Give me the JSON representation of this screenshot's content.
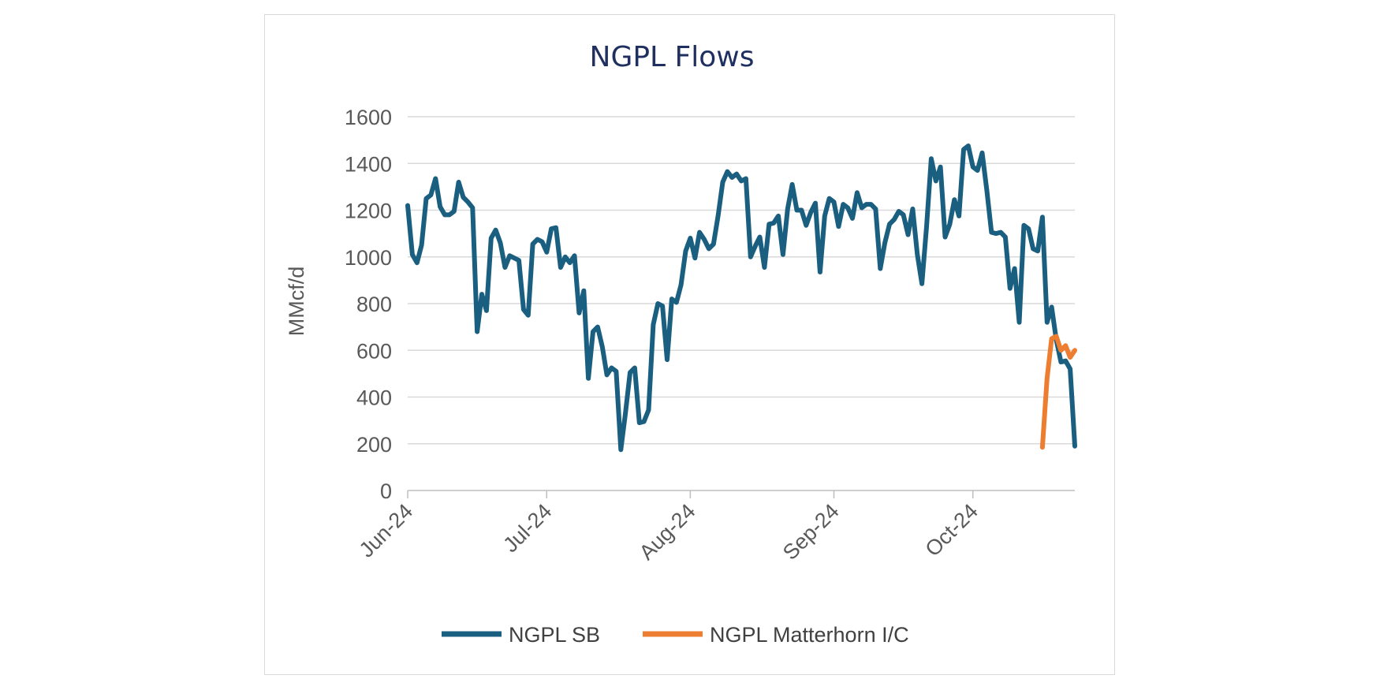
{
  "chart_data": {
    "type": "line",
    "title": "NGPL Flows",
    "ylabel": "MMcf/d",
    "xlabel": "",
    "ylim": [
      0,
      1600
    ],
    "yticks": [
      "0",
      "200",
      "400",
      "600",
      "800",
      "1000",
      "1200",
      "1400",
      "1600"
    ],
    "xlim": [
      "2024-06-01",
      "2024-10-23"
    ],
    "xticks": [
      {
        "label": "Jun-24",
        "date": "2024-06-01"
      },
      {
        "label": "Jul-24",
        "date": "2024-07-01"
      },
      {
        "label": "Aug-24",
        "date": "2024-08-01"
      },
      {
        "label": "Sep-24",
        "date": "2024-09-01"
      },
      {
        "label": "Oct-24",
        "date": "2024-10-01"
      }
    ],
    "grid": true,
    "legend_position": "bottom",
    "series": [
      {
        "name": "NGPL SB",
        "color": "#1b5f80",
        "points": [
          [
            "2024-06-01",
            1220
          ],
          [
            "2024-06-02",
            1010
          ],
          [
            "2024-06-03",
            975
          ],
          [
            "2024-06-04",
            1050
          ],
          [
            "2024-06-05",
            1250
          ],
          [
            "2024-06-06",
            1265
          ],
          [
            "2024-06-07",
            1335
          ],
          [
            "2024-06-08",
            1215
          ],
          [
            "2024-06-09",
            1180
          ],
          [
            "2024-06-10",
            1180
          ],
          [
            "2024-06-11",
            1195
          ],
          [
            "2024-06-12",
            1320
          ],
          [
            "2024-06-13",
            1255
          ],
          [
            "2024-06-14",
            1235
          ],
          [
            "2024-06-15",
            1210
          ],
          [
            "2024-06-16",
            680
          ],
          [
            "2024-06-17",
            840
          ],
          [
            "2024-06-18",
            770
          ],
          [
            "2024-06-19",
            1080
          ],
          [
            "2024-06-20",
            1115
          ],
          [
            "2024-06-21",
            1060
          ],
          [
            "2024-06-22",
            955
          ],
          [
            "2024-06-23",
            1005
          ],
          [
            "2024-06-24",
            995
          ],
          [
            "2024-06-25",
            985
          ],
          [
            "2024-06-26",
            775
          ],
          [
            "2024-06-27",
            750
          ],
          [
            "2024-06-28",
            1055
          ],
          [
            "2024-06-29",
            1075
          ],
          [
            "2024-06-30",
            1065
          ],
          [
            "2024-07-01",
            1020
          ],
          [
            "2024-07-02",
            1120
          ],
          [
            "2024-07-03",
            1125
          ],
          [
            "2024-07-04",
            955
          ],
          [
            "2024-07-05",
            1000
          ],
          [
            "2024-07-06",
            975
          ],
          [
            "2024-07-07",
            1005
          ],
          [
            "2024-07-08",
            760
          ],
          [
            "2024-07-09",
            855
          ],
          [
            "2024-07-10",
            480
          ],
          [
            "2024-07-11",
            680
          ],
          [
            "2024-07-12",
            700
          ],
          [
            "2024-07-13",
            615
          ],
          [
            "2024-07-14",
            495
          ],
          [
            "2024-07-15",
            525
          ],
          [
            "2024-07-16",
            510
          ],
          [
            "2024-07-17",
            175
          ],
          [
            "2024-07-18",
            330
          ],
          [
            "2024-07-19",
            505
          ],
          [
            "2024-07-20",
            525
          ],
          [
            "2024-07-21",
            290
          ],
          [
            "2024-07-22",
            295
          ],
          [
            "2024-07-23",
            345
          ],
          [
            "2024-07-24",
            710
          ],
          [
            "2024-07-25",
            800
          ],
          [
            "2024-07-26",
            790
          ],
          [
            "2024-07-27",
            560
          ],
          [
            "2024-07-28",
            820
          ],
          [
            "2024-07-29",
            805
          ],
          [
            "2024-07-30",
            880
          ],
          [
            "2024-07-31",
            1025
          ],
          [
            "2024-08-01",
            1080
          ],
          [
            "2024-08-02",
            995
          ],
          [
            "2024-08-03",
            1105
          ],
          [
            "2024-08-04",
            1075
          ],
          [
            "2024-08-05",
            1035
          ],
          [
            "2024-08-06",
            1055
          ],
          [
            "2024-08-07",
            1175
          ],
          [
            "2024-08-08",
            1320
          ],
          [
            "2024-08-09",
            1365
          ],
          [
            "2024-08-10",
            1340
          ],
          [
            "2024-08-11",
            1355
          ],
          [
            "2024-08-12",
            1325
          ],
          [
            "2024-08-13",
            1335
          ],
          [
            "2024-08-14",
            1000
          ],
          [
            "2024-08-15",
            1045
          ],
          [
            "2024-08-16",
            1085
          ],
          [
            "2024-08-17",
            955
          ],
          [
            "2024-08-18",
            1140
          ],
          [
            "2024-08-19",
            1145
          ],
          [
            "2024-08-20",
            1175
          ],
          [
            "2024-08-21",
            1010
          ],
          [
            "2024-08-22",
            1205
          ],
          [
            "2024-08-23",
            1310
          ],
          [
            "2024-08-24",
            1200
          ],
          [
            "2024-08-25",
            1200
          ],
          [
            "2024-08-26",
            1135
          ],
          [
            "2024-08-27",
            1190
          ],
          [
            "2024-08-28",
            1230
          ],
          [
            "2024-08-29",
            935
          ],
          [
            "2024-08-30",
            1175
          ],
          [
            "2024-08-31",
            1250
          ],
          [
            "2024-09-01",
            1235
          ],
          [
            "2024-09-02",
            1130
          ],
          [
            "2024-09-03",
            1225
          ],
          [
            "2024-09-04",
            1210
          ],
          [
            "2024-09-05",
            1165
          ],
          [
            "2024-09-06",
            1275
          ],
          [
            "2024-09-07",
            1210
          ],
          [
            "2024-09-08",
            1225
          ],
          [
            "2024-09-09",
            1225
          ],
          [
            "2024-09-10",
            1205
          ],
          [
            "2024-09-11",
            950
          ],
          [
            "2024-09-12",
            1060
          ],
          [
            "2024-09-13",
            1140
          ],
          [
            "2024-09-14",
            1160
          ],
          [
            "2024-09-15",
            1195
          ],
          [
            "2024-09-16",
            1180
          ],
          [
            "2024-09-17",
            1095
          ],
          [
            "2024-09-18",
            1205
          ],
          [
            "2024-09-19",
            1010
          ],
          [
            "2024-09-20",
            885
          ],
          [
            "2024-09-21",
            1130
          ],
          [
            "2024-09-22",
            1420
          ],
          [
            "2024-09-23",
            1325
          ],
          [
            "2024-09-24",
            1385
          ],
          [
            "2024-09-25",
            1085
          ],
          [
            "2024-09-26",
            1140
          ],
          [
            "2024-09-27",
            1245
          ],
          [
            "2024-09-28",
            1175
          ],
          [
            "2024-09-29",
            1460
          ],
          [
            "2024-09-30",
            1475
          ],
          [
            "2024-10-01",
            1385
          ],
          [
            "2024-10-02",
            1370
          ],
          [
            "2024-10-03",
            1445
          ],
          [
            "2024-10-04",
            1285
          ],
          [
            "2024-10-05",
            1105
          ],
          [
            "2024-10-06",
            1100
          ],
          [
            "2024-10-07",
            1105
          ],
          [
            "2024-10-08",
            1085
          ],
          [
            "2024-10-09",
            865
          ],
          [
            "2024-10-10",
            950
          ],
          [
            "2024-10-11",
            720
          ],
          [
            "2024-10-12",
            1135
          ],
          [
            "2024-10-13",
            1120
          ],
          [
            "2024-10-14",
            1035
          ],
          [
            "2024-10-15",
            1025
          ],
          [
            "2024-10-16",
            1170
          ],
          [
            "2024-10-17",
            720
          ],
          [
            "2024-10-18",
            785
          ],
          [
            "2024-10-19",
            645
          ],
          [
            "2024-10-20",
            550
          ],
          [
            "2024-10-21",
            555
          ],
          [
            "2024-10-22",
            520
          ],
          [
            "2024-10-23",
            190
          ]
        ]
      },
      {
        "name": "NGPL Matterhorn I/C",
        "color": "#ed7d31",
        "points": [
          [
            "2024-10-16",
            185
          ],
          [
            "2024-10-17",
            480
          ],
          [
            "2024-10-18",
            650
          ],
          [
            "2024-10-19",
            660
          ],
          [
            "2024-10-20",
            600
          ],
          [
            "2024-10-21",
            620
          ],
          [
            "2024-10-22",
            570
          ],
          [
            "2024-10-23",
            600
          ]
        ]
      }
    ]
  }
}
